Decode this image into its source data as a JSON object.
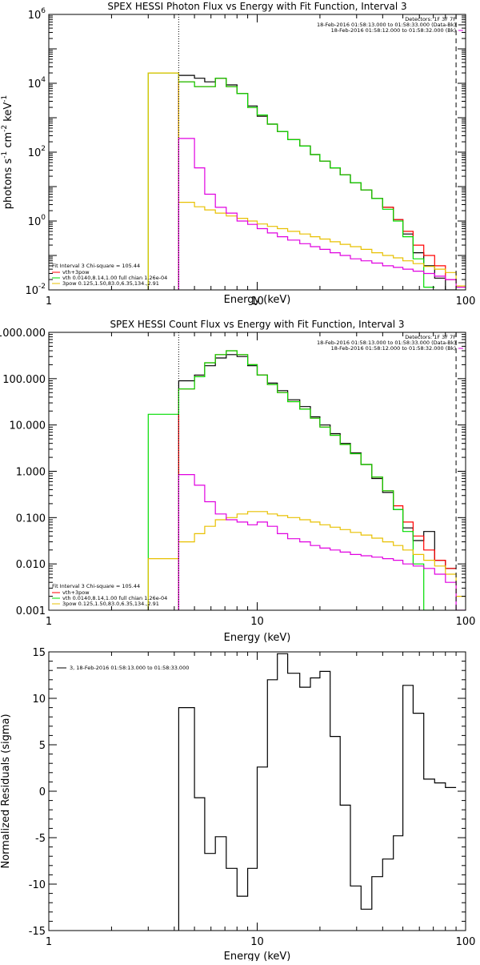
{
  "colors": {
    "black": "#000000",
    "red": "#ff0000",
    "green": "#00dd00",
    "magenta": "#e000e0",
    "yellow": "#e8c000"
  },
  "chart_data": [
    {
      "type": "line",
      "step": true,
      "title": "SPEX HESSI Photon Flux vs Energy with Fit Function, Interval 3",
      "xlabel": "Energy (keV)",
      "ylabel_parts": [
        "photons s",
        "-1",
        " cm",
        "-2",
        " keV",
        "-1"
      ],
      "xscale": "log",
      "yscale": "log",
      "xlim": [
        1,
        100
      ],
      "ylim": [
        0.01,
        1000000
      ],
      "xticks": [
        {
          "v": 1,
          "t": "1"
        },
        {
          "v": 10,
          "t": "10"
        },
        {
          "v": 100,
          "t": "100"
        }
      ],
      "yticks": [
        {
          "v": 1000000,
          "b": "10",
          "e": "6"
        },
        {
          "v": 10000,
          "b": "10",
          "e": "4"
        },
        {
          "v": 100,
          "b": "10",
          "e": "2"
        },
        {
          "v": 1,
          "b": "10",
          "e": "0"
        },
        {
          "v": 0.01,
          "b": "10",
          "e": "-2"
        }
      ],
      "vlines": [
        {
          "x": 4.2,
          "style": "dotted"
        },
        {
          "x": 90,
          "style": "dashed"
        }
      ],
      "top_labels": [
        "Detectors: 1F 3F 7F",
        "18-Feb-2016 01:58:13.000 to 01:58:33.000 (Data-Bk)",
        "18-Feb-2016 01:58:12.000 to 01:58:32.000 (Bk)"
      ],
      "top_label_colors": [
        "",
        "#000000",
        "#e000e0"
      ],
      "legend_title": "Fit Interval 3   Chi-square = 105.44",
      "legend_items": [
        {
          "label": "vth+3pow",
          "color": "#ff0000"
        },
        {
          "label": "vth 0.0140,8.14,1.00  full chian 1.26e-04",
          "color": "#00dd00"
        },
        {
          "label": "3pow 0.125,1.50,83.0,6.35,134.,2.91",
          "color": "#e8c000"
        }
      ],
      "series": [
        {
          "color": "#000000",
          "edges": [
            3,
            4.2,
            5,
            5.6,
            6.3,
            7.1,
            8,
            9,
            10,
            11.2,
            12.5,
            14,
            16,
            18,
            20,
            22.4,
            25,
            28,
            31.5,
            35.5,
            40,
            45,
            50,
            56,
            63,
            71,
            80,
            90
          ],
          "values": [
            null,
            17000,
            14000,
            11000,
            14000,
            9000,
            5000,
            2200,
            1100,
            650,
            400,
            230,
            150,
            85,
            55,
            35,
            22,
            13,
            8,
            4.5,
            2.5,
            1.1,
            0.42,
            0.12,
            0.05,
            0.022,
            0.008
          ]
        },
        {
          "color": "#ff0000",
          "edges": [
            3,
            4.2,
            5,
            5.6,
            6.3,
            7.1,
            8,
            9,
            10,
            11.2,
            12.5,
            14,
            16,
            18,
            20,
            22.4,
            25,
            28,
            31.5,
            35.5,
            40,
            45,
            50,
            56,
            63,
            71,
            80,
            90
          ],
          "values": [
            null,
            11000,
            8000,
            8000,
            14000,
            8000,
            5000,
            2000,
            1200,
            650,
            400,
            230,
            150,
            85,
            55,
            35,
            22,
            13,
            8,
            4.5,
            2.5,
            1.1,
            0.5,
            0.2,
            0.1,
            0.05,
            0.02
          ]
        },
        {
          "color": "#00dd00",
          "edges": [
            3,
            4.2,
            5,
            5.6,
            6.3,
            7.1,
            8,
            9,
            10,
            11.2,
            12.5,
            14,
            16,
            18,
            20,
            22.4,
            25,
            28,
            31.5,
            35.5,
            40,
            45,
            50,
            56,
            63,
            71,
            80,
            90
          ],
          "values": [
            20000,
            11000,
            8000,
            8000,
            14000,
            8000,
            5000,
            2000,
            1200,
            650,
            400,
            230,
            150,
            85,
            55,
            35,
            22,
            13,
            8,
            4.5,
            2.2,
            1.0,
            0.35,
            0.08,
            0.012,
            null,
            null
          ]
        },
        {
          "color": "#e8c000",
          "edges": [
            3,
            4.2,
            5,
            5.6,
            6.3,
            7.1,
            8,
            9,
            10,
            11.2,
            12.5,
            14,
            16,
            18,
            20,
            22.4,
            25,
            28,
            31.5,
            35.5,
            40,
            45,
            50,
            56,
            63,
            71,
            80,
            90,
            100
          ],
          "values": [
            20000,
            3.5,
            2.6,
            2.1,
            1.7,
            1.4,
            1.2,
            1.0,
            0.82,
            0.7,
            0.6,
            0.5,
            0.42,
            0.35,
            0.3,
            0.25,
            0.21,
            0.18,
            0.15,
            0.12,
            0.1,
            0.085,
            0.07,
            0.058,
            0.048,
            0.04,
            0.032,
            0.013
          ]
        },
        {
          "color": "#e000e0",
          "edges": [
            4.2,
            5,
            5.6,
            6.3,
            7.1,
            8,
            9,
            10,
            11.2,
            12.5,
            14,
            16,
            18,
            20,
            22.4,
            25,
            28,
            31.5,
            35.5,
            40,
            45,
            50,
            56,
            63,
            71,
            80,
            90,
            100
          ],
          "values": [
            250,
            35,
            6,
            2.5,
            1.7,
            1.0,
            0.8,
            0.6,
            0.45,
            0.35,
            0.28,
            0.22,
            0.18,
            0.15,
            0.12,
            0.1,
            0.08,
            0.07,
            0.06,
            0.05,
            0.045,
            0.04,
            0.035,
            0.03,
            0.025,
            0.02,
            0.012
          ]
        }
      ]
    },
    {
      "type": "line",
      "step": true,
      "title": "SPEX HESSI Count Flux vs Energy with Fit Function, Interval 3",
      "xlabel": "Energy (keV)",
      "ylabel_parts": [],
      "xscale": "log",
      "yscale": "log",
      "xlim": [
        1,
        100
      ],
      "ylim": [
        0.001,
        1000
      ],
      "xticks": [
        {
          "v": 1,
          "t": "1"
        },
        {
          "v": 10,
          "t": "10"
        },
        {
          "v": 100,
          "t": "100"
        }
      ],
      "yticks": [
        {
          "v": 1000,
          "t": "1000.000"
        },
        {
          "v": 100,
          "t": "100.000"
        },
        {
          "v": 10,
          "t": "10.000"
        },
        {
          "v": 1,
          "t": "1.000"
        },
        {
          "v": 0.1,
          "t": "0.100"
        },
        {
          "v": 0.01,
          "t": "0.010"
        },
        {
          "v": 0.001,
          "t": "0.001"
        }
      ],
      "vlines": [
        {
          "x": 4.2,
          "style": "dotted"
        },
        {
          "x": 90,
          "style": "dashed"
        }
      ],
      "top_labels": [
        "Detectors: 1F 3F 7F",
        "18-Feb-2016 01:58:13.000 to 01:58:33.000 (Data-Bk)",
        "18-Feb-2016 01:58:12.000 to 01:58:32.000 (Bk)"
      ],
      "top_label_colors": [
        "",
        "#000000",
        "#e000e0"
      ],
      "legend_title": "Fit Interval 3   Chi-square = 105.44",
      "legend_items": [
        {
          "label": "vth+3pow",
          "color": "#ff0000"
        },
        {
          "label": "vth 0.0140,8.14,1.00  full chian 1.26e-04",
          "color": "#00dd00"
        },
        {
          "label": "3pow 0.125,1.50,83.0,6.35,134.,2.91",
          "color": "#e8c000"
        }
      ],
      "series": [
        {
          "color": "#000000",
          "edges": [
            3,
            4.2,
            5,
            5.6,
            6.3,
            7.1,
            8,
            9,
            10,
            11.2,
            12.5,
            14,
            16,
            18,
            20,
            22.4,
            25,
            28,
            31.5,
            35.5,
            40,
            45,
            50,
            56,
            63,
            71,
            80,
            90
          ],
          "values": [
            null,
            90,
            120,
            190,
            280,
            330,
            300,
            190,
            120,
            80,
            55,
            35,
            25,
            15,
            10,
            6.5,
            4,
            2.5,
            1.4,
            0.7,
            0.35,
            0.15,
            0.06,
            0.032,
            0.05,
            0.012,
            0.008
          ]
        },
        {
          "color": "#ff0000",
          "edges": [
            3,
            4.2,
            5,
            5.6,
            6.3,
            7.1,
            8,
            9,
            10,
            11.2,
            12.5,
            14,
            16,
            18,
            20,
            22.4,
            25,
            28,
            31.5,
            35.5,
            40,
            45,
            50,
            56,
            63,
            71,
            80,
            90
          ],
          "values": [
            null,
            60,
            110,
            220,
            330,
            400,
            330,
            200,
            120,
            75,
            50,
            32,
            22,
            14,
            9,
            6,
            3.8,
            2.4,
            1.4,
            0.75,
            0.38,
            0.18,
            0.08,
            0.04,
            0.02,
            0.012,
            0.008
          ]
        },
        {
          "color": "#00dd00",
          "edges": [
            3,
            4.2,
            5,
            5.6,
            6.3,
            7.1,
            8,
            9,
            10,
            11.2,
            12.5,
            14,
            16,
            18,
            20,
            22.4,
            25,
            28,
            31.5,
            35.5,
            40,
            45,
            50,
            56,
            63,
            71,
            80,
            90
          ],
          "values": [
            17,
            60,
            110,
            220,
            330,
            400,
            330,
            200,
            120,
            75,
            50,
            32,
            22,
            14,
            9,
            6,
            3.8,
            2.4,
            1.4,
            0.75,
            0.38,
            0.15,
            0.05,
            0.01,
            0.001,
            null,
            null
          ]
        },
        {
          "color": "#e8c000",
          "edges": [
            3,
            4.2,
            5,
            5.6,
            6.3,
            7.1,
            8,
            9,
            10,
            11.2,
            12.5,
            14,
            16,
            18,
            20,
            22.4,
            25,
            28,
            31.5,
            35.5,
            40,
            45,
            50,
            56,
            63,
            71,
            80,
            90,
            100
          ],
          "values": [
            0.013,
            0.03,
            0.045,
            0.065,
            0.09,
            0.1,
            0.12,
            0.135,
            0.135,
            0.12,
            0.11,
            0.1,
            0.09,
            0.08,
            0.07,
            0.062,
            0.055,
            0.048,
            0.042,
            0.036,
            0.03,
            0.025,
            0.02,
            0.016,
            0.012,
            0.009,
            0.006,
            0.002
          ]
        },
        {
          "color": "#e000e0",
          "edges": [
            4.2,
            5,
            5.6,
            6.3,
            7.1,
            8,
            9,
            10,
            11.2,
            12.5,
            14,
            16,
            18,
            20,
            22.4,
            25,
            28,
            31.5,
            35.5,
            40,
            45,
            50,
            56,
            63,
            71,
            80,
            90,
            100
          ],
          "values": [
            0.85,
            0.5,
            0.22,
            0.12,
            0.09,
            0.08,
            0.07,
            0.08,
            0.065,
            0.045,
            0.035,
            0.03,
            0.025,
            0.022,
            0.02,
            0.018,
            0.016,
            0.015,
            0.014,
            0.013,
            0.012,
            0.01,
            0.009,
            0.008,
            0.006,
            0.004,
            0.001
          ]
        }
      ]
    },
    {
      "type": "line",
      "step": true,
      "title": "",
      "xlabel": "Energy (keV)",
      "ylabel": "Normalized Residuals (sigma)",
      "xscale": "log",
      "yscale": "linear",
      "xlim": [
        1,
        100
      ],
      "ylim": [
        -15,
        15
      ],
      "xticks": [
        {
          "v": 1,
          "t": "1"
        },
        {
          "v": 10,
          "t": "10"
        },
        {
          "v": 100,
          "t": "100"
        }
      ],
      "yticks": [
        {
          "v": 15,
          "t": "15"
        },
        {
          "v": 10,
          "t": "10"
        },
        {
          "v": 5,
          "t": "5"
        },
        {
          "v": 0,
          "t": "0"
        },
        {
          "v": -5,
          "t": "-5"
        },
        {
          "v": -10,
          "t": "-10"
        },
        {
          "v": -15,
          "t": "-15"
        }
      ],
      "vlines": [],
      "legend_items": [
        {
          "label": "3, 18-Feb-2016 01:58:13.000 to 01:58:33.000",
          "color": "#000000"
        }
      ],
      "series": [
        {
          "color": "#000000",
          "edges": [
            4.2,
            5,
            5.6,
            6.3,
            7.1,
            8,
            9,
            10,
            11.2,
            12.5,
            14,
            16,
            18,
            20,
            22.4,
            25,
            28,
            31.5,
            35.5,
            40,
            45,
            50,
            56,
            63,
            71,
            80,
            90
          ],
          "values": [
            9,
            -0.7,
            -6.7,
            -4.9,
            -8.3,
            -11.3,
            -8.3,
            2.6,
            12,
            14.8,
            12.7,
            11.2,
            12.2,
            12.9,
            5.9,
            -1.5,
            -10.2,
            -12.7,
            -9.2,
            -7.3,
            -4.8,
            11.4,
            8.4,
            1.3,
            0.9,
            0.4
          ]
        }
      ]
    }
  ]
}
